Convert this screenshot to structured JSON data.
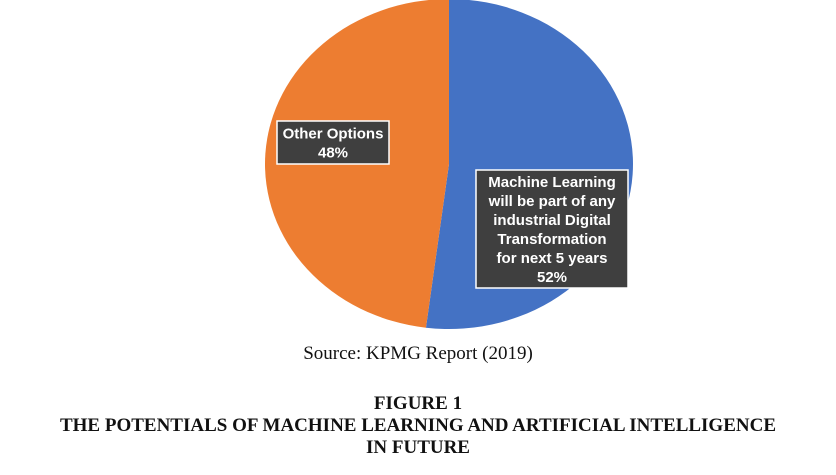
{
  "chart_data": {
    "type": "pie",
    "slices": [
      {
        "label_lines": [
          "Machine Learning",
          "will be part of any",
          "industrial Digital",
          "Transformation",
          "for next 5 years"
        ],
        "value": 52,
        "value_label": "52%",
        "color": "#4472c4"
      },
      {
        "label_lines": [
          "Other Options"
        ],
        "value": 48,
        "value_label": "48%",
        "color": "#ed7d31"
      }
    ],
    "start": "top",
    "direction": "clockwise",
    "legend": "none"
  },
  "source": "Source: KPMG Report (2019)",
  "caption": {
    "figure_number": "FIGURE 1",
    "title_line1": "THE POTENTIALS OF MACHINE LEARNING AND ARTIFICIAL INTELLIGENCE",
    "title_line2": "IN FUTURE"
  }
}
